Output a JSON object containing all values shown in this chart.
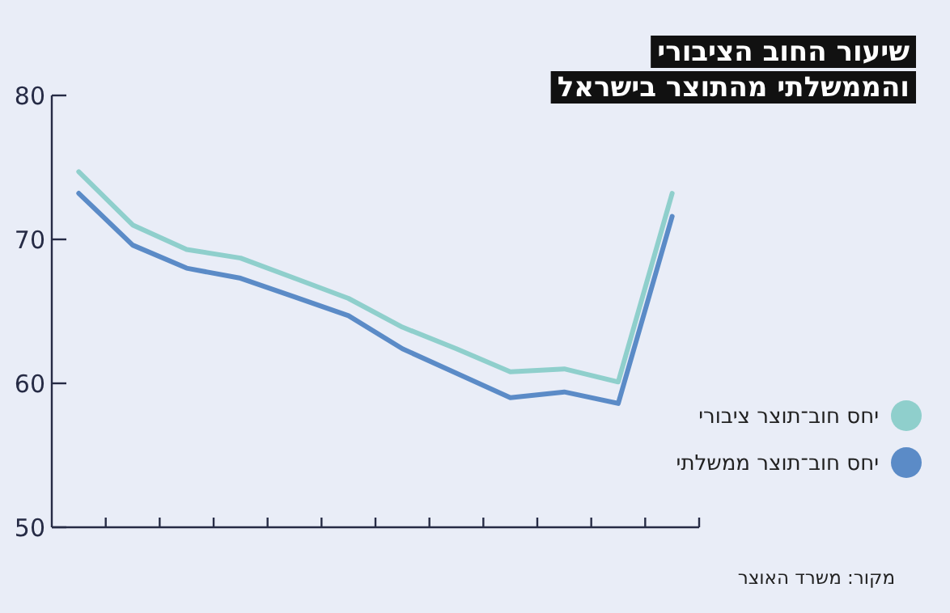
{
  "chart_data": {
    "type": "line",
    "title": "שיעור החוב הציבורי\nוהממשלתי מהתוצר בישראל",
    "categories": [
      null,
      null,
      null,
      null,
      null,
      null,
      null,
      null,
      null,
      null,
      null,
      null
    ],
    "series": [
      {
        "name": "יחס חוב־תוצר ציבורי",
        "color": "#8fcfcc",
        "values": [
          74.7,
          71.0,
          69.3,
          68.7,
          67.3,
          65.9,
          63.9,
          62.4,
          60.8,
          61.0,
          60.1,
          73.2
        ]
      },
      {
        "name": "יחס חוב־תוצר ממשלתי",
        "color": "#5b8bc7",
        "values": [
          73.2,
          69.6,
          68.0,
          67.3,
          66.0,
          64.7,
          62.4,
          60.7,
          59.0,
          59.4,
          58.6,
          71.6
        ]
      }
    ],
    "ylim": [
      50,
      80
    ],
    "yticks": [
      50,
      60,
      70,
      80
    ],
    "grid": false,
    "legend": "right",
    "marker": "none",
    "line_style": "solid",
    "annotations": [
      "מקור: משרד האוצר"
    ]
  }
}
